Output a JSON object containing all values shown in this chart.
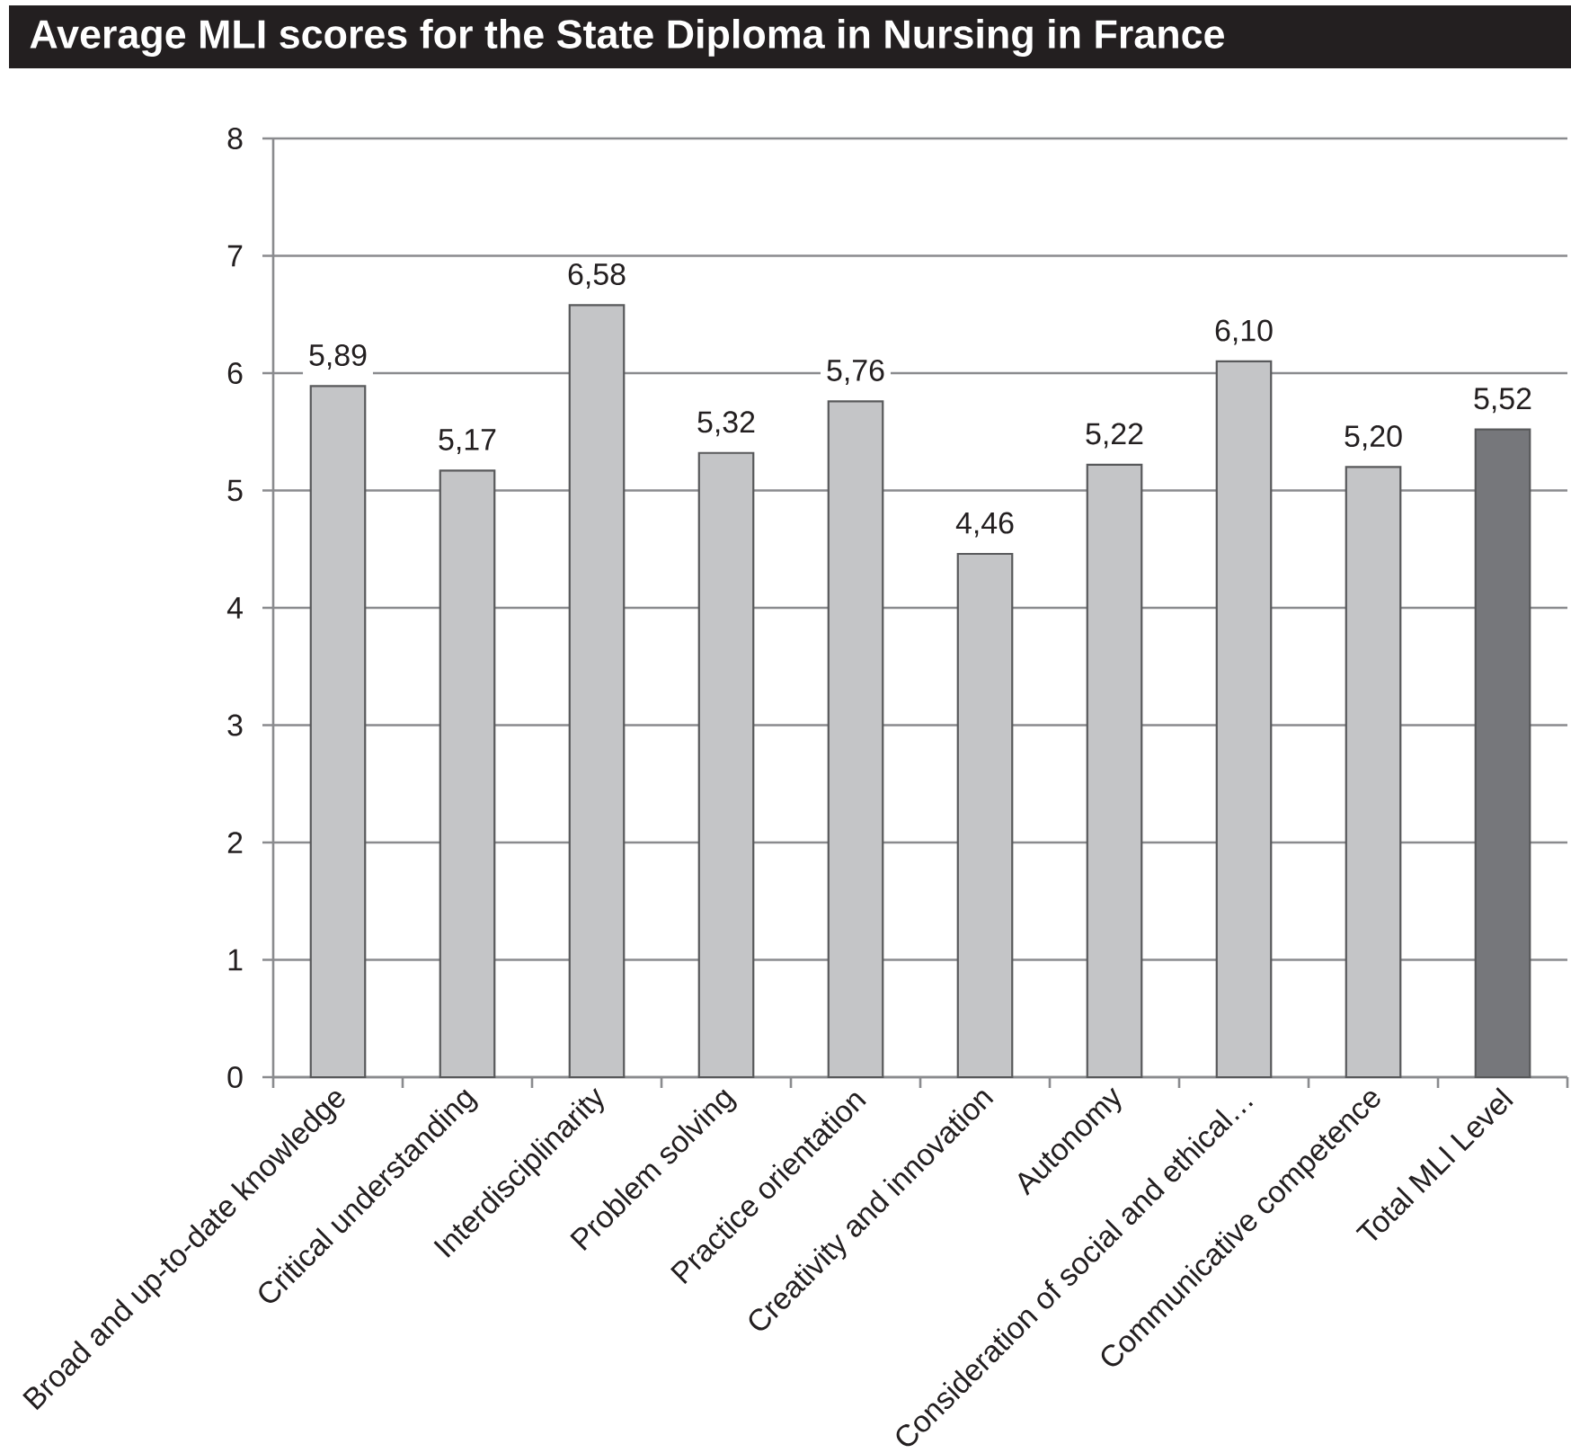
{
  "chart_data": {
    "type": "bar",
    "title": "Average MLI scores for the State Diploma in Nursing in France",
    "categories": [
      "Broad and up-to-date knowledge",
      "Critical understanding",
      "Interdisciplinarity",
      "Problem solving",
      "Practice orientation",
      "Creativity and innovation",
      "Autonomy",
      "Consideration of social and ethical…",
      "Communicative competence",
      "Total MLI Level"
    ],
    "values": [
      5.89,
      5.17,
      6.58,
      5.32,
      5.76,
      4.46,
      5.22,
      6.1,
      5.2,
      5.52
    ],
    "colors": [
      "#c4c5c7",
      "#c4c5c7",
      "#c4c5c7",
      "#c4c5c7",
      "#c4c5c7",
      "#c4c5c7",
      "#c4c5c7",
      "#c4c5c7",
      "#c4c5c7",
      "#76777b"
    ],
    "value_labels": [
      "5,89",
      "5,17",
      "6,58",
      "5,32",
      "5,76",
      "4,46",
      "5,22",
      "6,10",
      "5,20",
      "5,52"
    ],
    "ylim": [
      0,
      8
    ],
    "yticks": [
      0,
      1,
      2,
      3,
      4,
      5,
      6,
      7,
      8
    ],
    "grid": "y"
  }
}
